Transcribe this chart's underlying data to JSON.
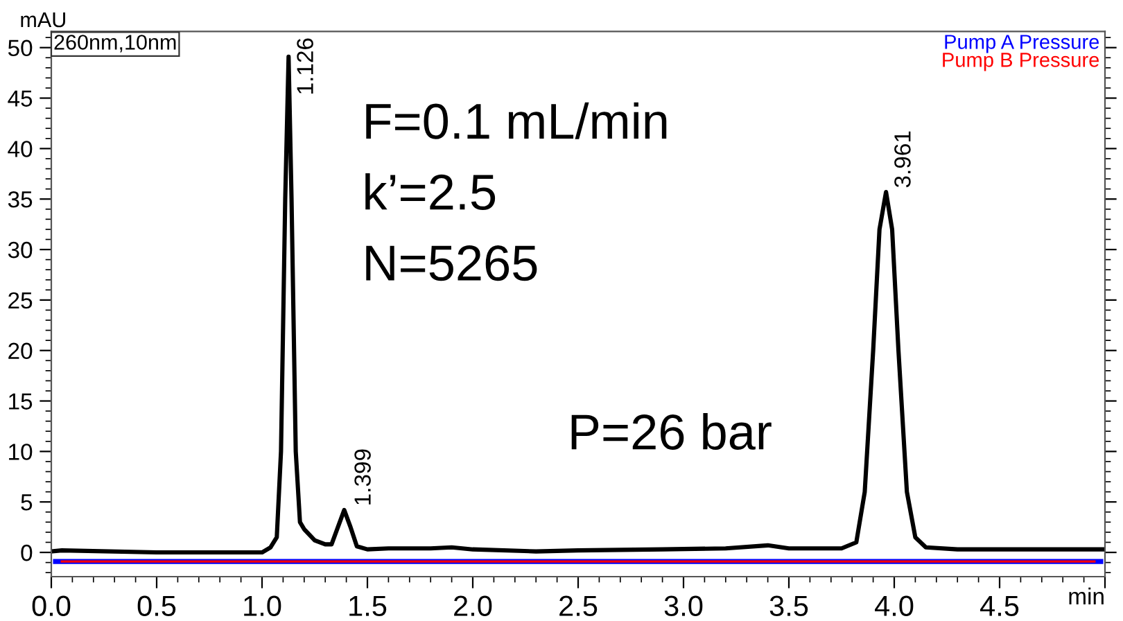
{
  "chart_data": {
    "type": "line",
    "xlabel": "min",
    "ylabel": "mAU",
    "xlim": [
      0,
      5
    ],
    "xticks": [
      {
        "value": 0,
        "label": "0.0"
      },
      0.5,
      {
        "value": 1,
        "label": "1.0"
      },
      1.5,
      {
        "value": 2,
        "label": "2.0"
      },
      2.5,
      {
        "value": 3,
        "label": "3.0"
      },
      3.5,
      {
        "value": 4,
        "label": "4.0"
      },
      4.5,
      {
        "value": 5,
        "label": null
      }
    ],
    "ylim": [
      -2.4,
      51.6
    ],
    "yticks": [
      0,
      5,
      10,
      15,
      20,
      25,
      30,
      35,
      40,
      45,
      50
    ],
    "grid": false,
    "legend": "top right",
    "marker": "none",
    "line_style": "solid",
    "series": [
      {
        "color": "#000000",
        "x": [
          0,
          0.05,
          0.5,
          1.0,
          1.04,
          1.07,
          1.09,
          1.11,
          1.126,
          1.14,
          1.16,
          1.18,
          1.2,
          1.25,
          1.3,
          1.33,
          1.36,
          1.39,
          1.42,
          1.45,
          1.5,
          1.6,
          1.8,
          1.9,
          2.0,
          2.3,
          2.5,
          2.9,
          3.2,
          3.4,
          3.5,
          3.75,
          3.82,
          3.86,
          3.9,
          3.93,
          3.961,
          3.99,
          4.02,
          4.06,
          4.1,
          4.15,
          4.3,
          5.0
        ],
        "values": [
          0.1,
          0.2,
          0,
          0,
          0.5,
          1.5,
          10,
          35,
          49.1,
          35,
          10,
          3,
          2.3,
          1.2,
          0.8,
          0.8,
          2.5,
          4.2,
          2.5,
          0.6,
          0.3,
          0.4,
          0.4,
          0.5,
          0.3,
          0.1,
          0.2,
          0.3,
          0.4,
          0.7,
          0.4,
          0.4,
          1,
          6,
          20,
          32,
          35.7,
          32,
          20,
          6,
          1.5,
          0.5,
          0.3,
          0.3
        ]
      },
      {
        "name": "Pump A Pressure",
        "color": "#0000ff",
        "x": [
          0.02,
          4.98
        ],
        "values": [
          -0.9,
          -0.9
        ]
      },
      {
        "name": "Pump B Pressure",
        "color": "#ff0000",
        "x": [
          0.05,
          4.95
        ],
        "values": [
          -0.9,
          -0.9
        ]
      }
    ],
    "annotations": [
      "260nm,10nm",
      "F=0.1 mL/min",
      "k’=2.5",
      "N=5265",
      "P=26 bar",
      {
        "text": "1.126",
        "x": 1.126,
        "y": 49.1
      },
      {
        "text": "1.399",
        "x": 1.399,
        "y": 4.2
      },
      {
        "text": "3.961",
        "x": 3.961,
        "y": 35.7
      }
    ]
  }
}
